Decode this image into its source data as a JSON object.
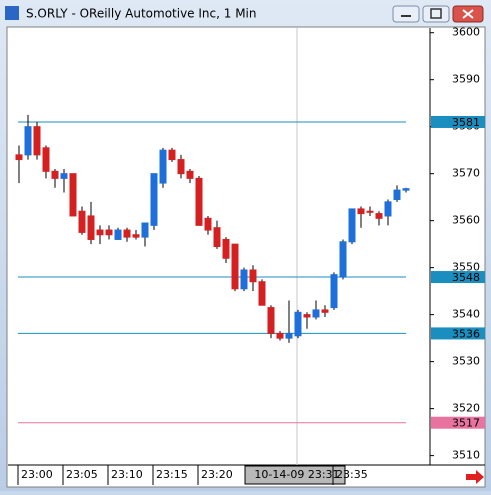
{
  "window_title": "S.ORLY - OReilly Automotive Inc, 1 Min",
  "chart_data": {
    "type": "candlestick",
    "categories": [
      "23:00",
      null,
      null,
      null,
      null,
      "23:05",
      null,
      null,
      null,
      null,
      "23:10",
      null,
      null,
      null,
      null,
      "23:15",
      null,
      null,
      null,
      null,
      "23:20",
      null,
      null,
      null,
      null,
      null,
      null,
      null,
      null,
      null,
      null,
      "10-14-09 23:31",
      null,
      null,
      null,
      "23:35",
      null,
      null,
      null,
      null,
      null,
      null,
      null,
      null
    ],
    "open": [
      3574,
      3574,
      3580,
      3575.5,
      3570.5,
      3569,
      3570,
      3562,
      3561,
      3558,
      3558,
      3556,
      3558,
      3557,
      3556.5,
      3559,
      3568,
      3575,
      3573,
      3570.5,
      3569,
      3560.5,
      3558.5,
      3556,
      3555,
      3545.5,
      3549.5,
      3547,
      3541.5,
      3536,
      3535,
      3535.5,
      3540,
      3539.5,
      3541,
      3541.5,
      3548,
      3555.5,
      3562.5,
      3562,
      3561.5,
      3561,
      3564.5,
      3566.5
    ],
    "high": [
      3576,
      3582.5,
      3581,
      3576,
      3571,
      3571,
      3570,
      3563,
      3564,
      3559,
      3559,
      3558.5,
      3558.5,
      3558,
      3559.5,
      3570,
      3575.5,
      3575.5,
      3574,
      3571,
      3569.5,
      3561,
      3560,
      3556.5,
      3555,
      3550,
      3550.5,
      3547.5,
      3542,
      3536.5,
      3543,
      3541,
      3540.5,
      3543,
      3542,
      3549,
      3556,
      3562.5,
      3563,
      3563,
      3562,
      3564.5,
      3567.5,
      3567
    ],
    "low": [
      3568,
      3573,
      3573,
      3569,
      3567,
      3566,
      3561,
      3557,
      3555,
      3555,
      3556,
      3556,
      3555.5,
      3556,
      3554.5,
      3558,
      3567,
      3572.5,
      3569,
      3568,
      3559,
      3557,
      3554,
      3551,
      3545,
      3545,
      3545,
      3542,
      3535,
      3534.5,
      3534,
      3535,
      3537,
      3539,
      3539.5,
      3541,
      3547.5,
      3555,
      3558.5,
      3561,
      3559,
      3559,
      3564,
      3566
    ],
    "close": [
      3573,
      3580,
      3574,
      3570.5,
      3569,
      3570,
      3561,
      3557.5,
      3556,
      3557,
      3557,
      3558,
      3556.5,
      3556.5,
      3559.5,
      3570,
      3575,
      3573,
      3570,
      3569,
      3559,
      3558,
      3554.5,
      3552,
      3545.5,
      3549.5,
      3547,
      3542,
      3536,
      3535,
      3536,
      3540.5,
      3539.5,
      3541,
      3540.5,
      3548.5,
      3555.5,
      3562.5,
      3561.5,
      3561.8,
      3560.5,
      3564,
      3566.5,
      3566.8
    ],
    "up_color": "#1e6fd9",
    "down_color": "#d42020",
    "ylim": [
      3508,
      3601
    ],
    "yticks": [
      3510,
      3520,
      3530,
      3540,
      3550,
      3560,
      3570,
      3580,
      3590,
      3600
    ],
    "hlines": [
      {
        "value": 3581,
        "color": "#1a8fbf"
      },
      {
        "value": 3548,
        "color": "#1a8fbf"
      },
      {
        "value": 3536,
        "color": "#1a8fbf"
      },
      {
        "value": 3517,
        "color": "#e8739e"
      }
    ]
  }
}
